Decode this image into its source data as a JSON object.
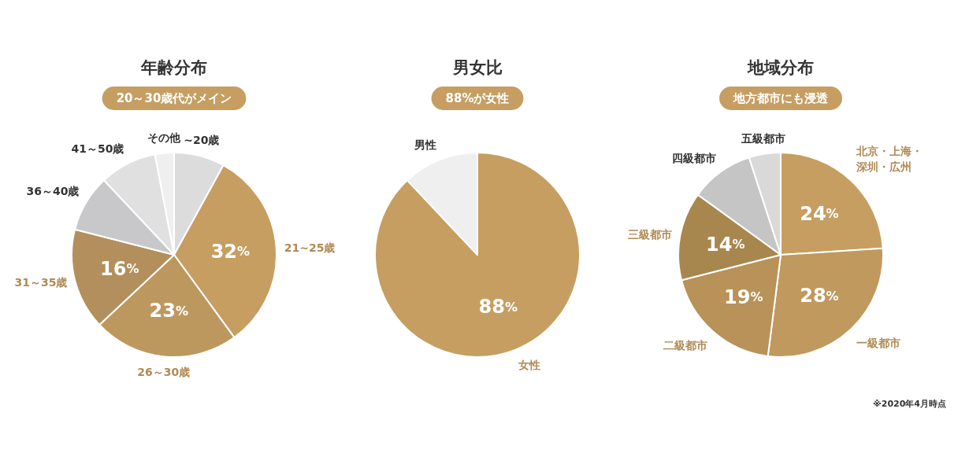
{
  "chart_data": [
    {
      "type": "pie",
      "title": "年齢分布",
      "subtitle": "20～30歳代がメイン",
      "categories": [
        "~20歳",
        "21~25歳",
        "26～30歳",
        "31～35歳",
        "36～40歳",
        "41～50歳",
        "その他"
      ],
      "values": [
        8,
        32,
        23,
        16,
        9,
        9,
        3
      ],
      "colors": [
        "#dcdcdc",
        "#c69e62",
        "#bd985e",
        "#b28f5c",
        "#c8c8ca",
        "#e0e0e0",
        "#efefef"
      ],
      "value_labels": [
        null,
        "32%",
        "23%",
        "16%",
        null,
        null,
        null
      ]
    },
    {
      "type": "pie",
      "title": "男女比",
      "subtitle": "88%が女性",
      "categories": [
        "女性",
        "男性"
      ],
      "values": [
        88,
        12
      ],
      "colors": [
        "#c69e62",
        "#efefef"
      ],
      "value_labels": [
        "88%",
        null
      ]
    },
    {
      "type": "pie",
      "title": "地域分布",
      "subtitle": "地方都市にも浸透",
      "categories": [
        "北京・上海・深圳・広州",
        "一級都市",
        "二級都市",
        "三級都市",
        "四級都市",
        "五級都市"
      ],
      "values": [
        24,
        28,
        19,
        14,
        10,
        5
      ],
      "colors": [
        "#c69e62",
        "#c0995e",
        "#b89258",
        "#a8874f",
        "#c5c5c5",
        "#d9d9d9"
      ],
      "value_labels": [
        "24%",
        "28%",
        "19%",
        "14%",
        null,
        null
      ],
      "annotations": [
        "※2020年4月時点"
      ]
    }
  ]
}
